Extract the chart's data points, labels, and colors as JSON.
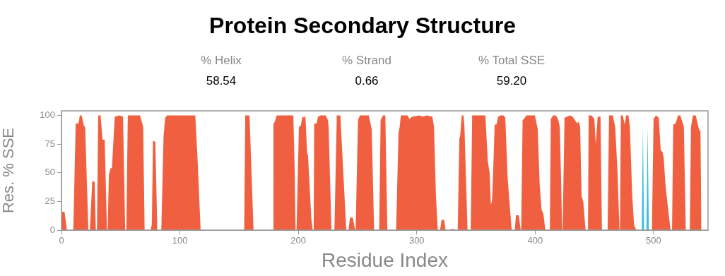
{
  "chart_data": {
    "type": "area",
    "title": "Protein Secondary Structure",
    "annotations": [
      "% Helix",
      "58.54",
      "% Strand",
      "0.66",
      "% Total SSE",
      "59.20"
    ],
    "xlabel": "Residue Index",
    "ylabel": "Res. % SSE",
    "xlim": [
      0,
      546
    ],
    "xticks": [
      0,
      100,
      200,
      300,
      400,
      500
    ],
    "ylim": [
      0,
      104
    ],
    "yticks": [
      0,
      25,
      50,
      75,
      100
    ],
    "series": [
      {
        "color": "#f06040",
        "x": [
          0,
          2.6,
          4.6,
          10,
          12,
          14.3,
          15.5,
          17,
          19,
          20,
          22.7,
          24,
          26,
          28,
          29,
          30,
          31,
          33,
          34.7,
          36.5,
          38.4,
          39,
          40,
          41.4,
          42.6,
          45,
          49,
          52,
          53.8,
          54.8,
          56,
          66.3,
          69,
          70.2,
          75.3,
          76.3,
          77.3,
          79.3,
          80.9,
          84.3,
          86.2,
          87.6,
          89.2,
          113,
          115,
          117.5,
          154.3,
          155.2,
          158.8,
          162.2,
          178.5,
          179,
          180.6,
          181.8,
          195.8,
          197,
          197.7,
          198.5,
          200.5,
          202,
          203.5,
          205,
          206,
          207.4,
          208.2,
          211,
          212.2,
          213,
          213.4,
          215.4,
          216.6,
          219,
          223,
          225,
          225.6,
          228,
          230.5,
          232.5,
          235.5,
          237.5,
          240.5,
          242.4,
          243.6,
          246,
          248,
          248.4,
          250.4,
          252,
          259.5,
          262,
          264,
          268.3,
          269.5,
          271.5,
          273.5,
          275.2,
          282.6,
          284.6,
          285.6,
          286.6,
          292.2,
          293.8,
          296.2,
          302.2,
          305.2,
          308.2,
          313.2,
          314.6,
          316.2,
          317.8,
          319.7,
          321,
          323.2,
          324.4,
          328,
          328.8,
          331.6,
          332.4,
          334.6,
          336,
          336.7,
          338,
          339.5,
          340.3,
          342.9,
          345.6,
          346.8,
          358,
          360,
          361.6,
          362.6,
          363.6,
          364.2,
          365.8,
          367.3,
          368.8,
          370.8,
          373.4,
          374.8,
          376.8,
          378.8,
          380.2,
          382.8,
          383.8,
          386.2,
          387.8,
          388.2,
          389.4,
          390.6,
          392.6,
          399.8,
          402.2,
          403.8,
          405.4,
          407,
          408.6,
          412.4,
          413.2,
          415.2,
          417.6,
          419.6,
          420.8,
          422,
          422.8,
          423.2,
          424.8,
          429.6,
          431.6,
          435.6,
          436.6,
          438,
          439.2,
          440.6,
          442.6,
          444.6,
          445.2,
          447.6,
          450,
          451.2,
          452.8,
          455.2,
          456.4,
          461.2,
          462.4,
          465.6,
          467.6,
          469.6,
          471.2,
          471.6,
          472.4,
          474,
          475.6,
          476.8,
          478.8,
          480,
          482,
          483.6,
          485.6,
          498.6,
          500,
          502,
          504.4,
          506,
          507.6,
          508.6,
          510,
          511.6,
          513.2,
          514.4,
          515.6,
          516.6,
          518.6,
          520.6,
          522.6,
          525.6,
          527.2,
          530.6,
          531.6,
          533.2,
          535.6,
          538.6,
          539.6,
          540.4
        ],
        "values": [
          16,
          16,
          0,
          0,
          93,
          93,
          100,
          100,
          91,
          90,
          0,
          0,
          43,
          42,
          0,
          0,
          100,
          100,
          79,
          79,
          0,
          0,
          48,
          54,
          54,
          99,
          100,
          99,
          0,
          0,
          100,
          100,
          90,
          0,
          0,
          5,
          78,
          77,
          0,
          0,
          82,
          98,
          100,
          100,
          60,
          0,
          0,
          100,
          100,
          0,
          0,
          92,
          96,
          100,
          100,
          50,
          0,
          0,
          90,
          91,
          99,
          98,
          100,
          68,
          65,
          10,
          0,
          0,
          93,
          93,
          99,
          100,
          100,
          96,
          90,
          0,
          0,
          100,
          100,
          60,
          0,
          0,
          11,
          11,
          0,
          0,
          96,
          100,
          100,
          88,
          0,
          0,
          96,
          100,
          100,
          0,
          0,
          85,
          90,
          100,
          100,
          97,
          99,
          100,
          99,
          100,
          99,
          90,
          30,
          0,
          0,
          9,
          9,
          0,
          0,
          1,
          1,
          0,
          0,
          80,
          82,
          100,
          100,
          90,
          0,
          0,
          100,
          100,
          60,
          50,
          22,
          26,
          40,
          92,
          92,
          99,
          100,
          100,
          98,
          45,
          18,
          0,
          0,
          13,
          13,
          0,
          0,
          96,
          97,
          100,
          100,
          88,
          40,
          18,
          14,
          0,
          0,
          97,
          100,
          100,
          96,
          90,
          40,
          0,
          0,
          98,
          100,
          99,
          93,
          95,
          90,
          30,
          25,
          0,
          0,
          100,
          100,
          97,
          75,
          99,
          99,
          0,
          0,
          100,
          100,
          90,
          50,
          0,
          0,
          100,
          100,
          92,
          100,
          100,
          90,
          30,
          4,
          0,
          0,
          97,
          100,
          98,
          70,
          68,
          63,
          40,
          25,
          10,
          0,
          0,
          92,
          93,
          100,
          100,
          90,
          0,
          0,
          90,
          100,
          100,
          87,
          87,
          0
        ]
      },
      {
        "color": "#3cbde0",
        "x": [
          490,
          491,
          492,
          494,
          495,
          496
        ],
        "values": [
          0,
          90,
          0,
          0,
          90,
          0
        ]
      }
    ]
  }
}
